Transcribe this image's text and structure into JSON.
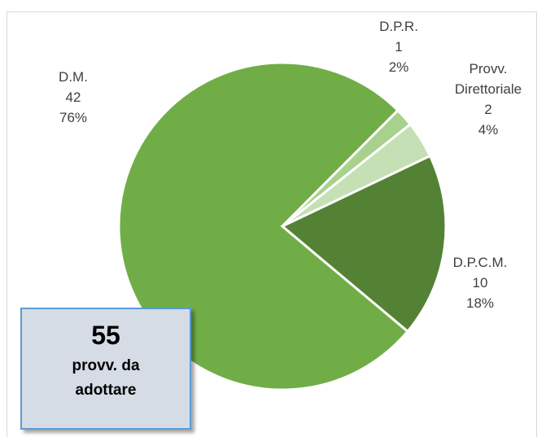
{
  "chart_data": {
    "type": "pie",
    "categories": [
      "D.M.",
      "D.P.R.",
      "Provv. Direttoriale",
      "D.P.C.M."
    ],
    "values": [
      42,
      1,
      2,
      10
    ],
    "percent_labels": [
      "76%",
      "2%",
      "4%",
      "18%"
    ],
    "colors": [
      "#70ad47",
      "#a9d18e",
      "#c5e0b4",
      "#548235"
    ],
    "total_box": {
      "value": 55,
      "label": "provv. da adottare"
    }
  }
}
